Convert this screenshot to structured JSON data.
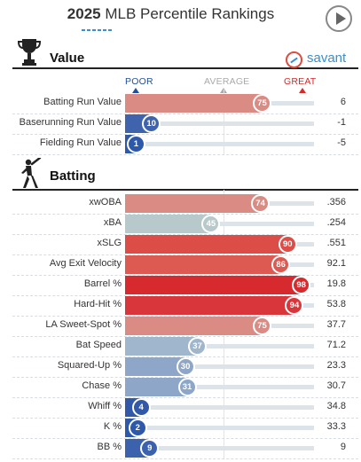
{
  "header": {
    "title_year": "2025",
    "title_text": "MLB Percentile Rankings",
    "play_button": "play-icon"
  },
  "brand": {
    "name": "savant"
  },
  "scale": {
    "poor": "POOR",
    "average": "AVERAGE",
    "great": "GREAT",
    "colors": {
      "poor": "#1f4f9e",
      "average": "#999999",
      "great": "#d62a2a"
    }
  },
  "value_section": {
    "title": "Value",
    "icon": "trophy-icon",
    "rows": [
      {
        "label": "Batting Run Value",
        "percentile": 75,
        "value": "6",
        "color": "#d98b84"
      },
      {
        "label": "Baserunning Run Value",
        "percentile": 10,
        "value": "-1",
        "color": "#3f64ad"
      },
      {
        "label": "Fielding Run Value",
        "percentile": 1,
        "value": "-5",
        "color": "#2e58a8"
      }
    ]
  },
  "batting_section": {
    "title": "Batting",
    "icon": "batter-icon",
    "rows": [
      {
        "label": "xwOBA",
        "percentile": 74,
        "value": ".356",
        "color": "#d98b84"
      },
      {
        "label": "xBA",
        "percentile": 45,
        "value": ".254",
        "color": "#b8c9cb"
      },
      {
        "label": "xSLG",
        "percentile": 90,
        "value": ".551",
        "color": "#dc4d48"
      },
      {
        "label": "Avg Exit Velocity",
        "percentile": 86,
        "value": "92.1",
        "color": "#dc5a52"
      },
      {
        "label": "Barrel %",
        "percentile": 98,
        "value": "19.8",
        "color": "#d72a2e"
      },
      {
        "label": "Hard-Hit %",
        "percentile": 94,
        "value": "53.8",
        "color": "#d8363a"
      },
      {
        "label": "LA Sweet-Spot %",
        "percentile": 75,
        "value": "37.7",
        "color": "#d98b84"
      },
      {
        "label": "Bat Speed",
        "percentile": 37,
        "value": "71.2",
        "color": "#9fb6cc"
      },
      {
        "label": "Squared-Up %",
        "percentile": 30,
        "value": "23.3",
        "color": "#8ea7c9"
      },
      {
        "label": "Chase %",
        "percentile": 31,
        "value": "30.7",
        "color": "#8ea7c9"
      },
      {
        "label": "Whiff %",
        "percentile": 4,
        "value": "34.8",
        "color": "#3159a8"
      },
      {
        "label": "K %",
        "percentile": 2,
        "value": "33.3",
        "color": "#2e58a8"
      },
      {
        "label": "BB %",
        "percentile": 9,
        "value": "9",
        "color": "#3c62ad"
      }
    ]
  }
}
